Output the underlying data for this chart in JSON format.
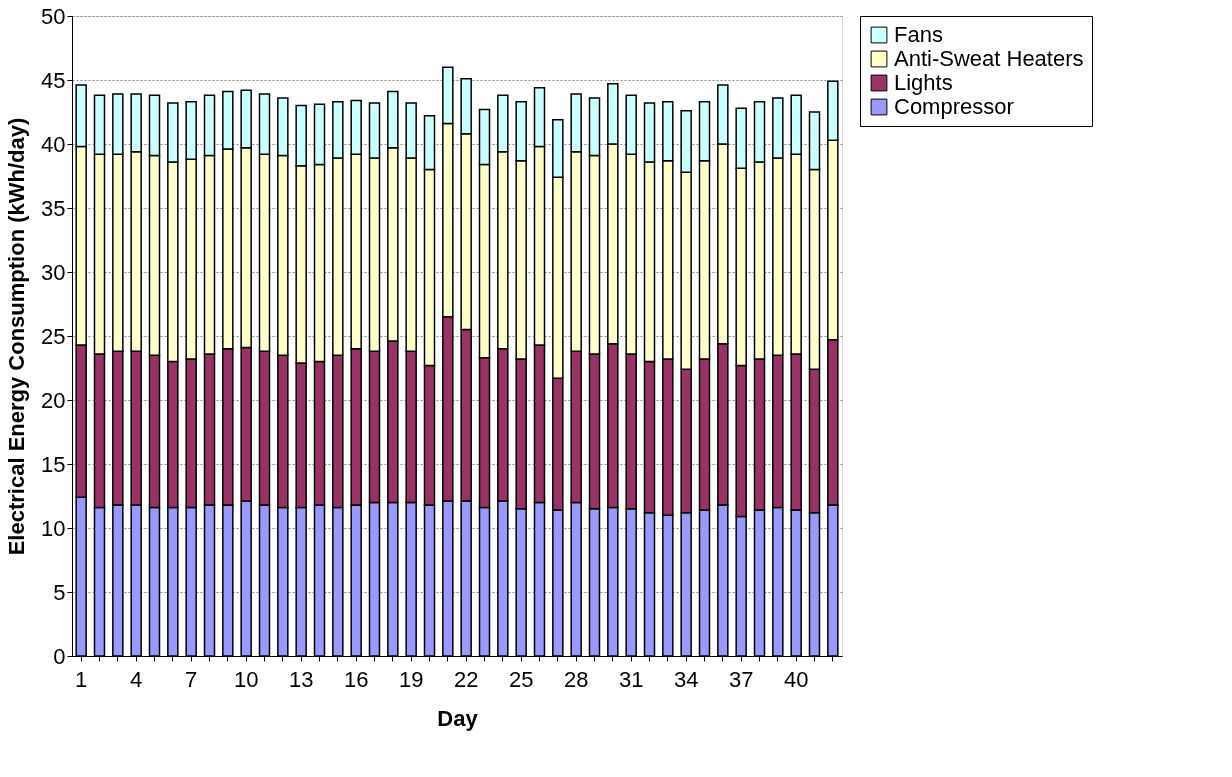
{
  "chart_data": {
    "type": "bar",
    "stacked": true,
    "xlabel": "Day",
    "ylabel": "Electrical Energy Consumption (kWh/day)",
    "categories": [
      "1",
      null,
      null,
      "4",
      null,
      null,
      "7",
      null,
      null,
      "10",
      null,
      null,
      "13",
      null,
      null,
      "16",
      null,
      null,
      "19",
      null,
      null,
      "22",
      null,
      null,
      "25",
      null,
      null,
      "28",
      null,
      null,
      "31",
      null,
      null,
      "34",
      null,
      null,
      "37",
      null,
      null,
      "40",
      null,
      null
    ],
    "series": [
      {
        "name": "Compressor",
        "color": "#9999ff",
        "values": [
          12.4,
          11.6,
          11.8,
          11.8,
          11.6,
          11.6,
          11.6,
          11.8,
          11.8,
          12.1,
          11.8,
          11.6,
          11.6,
          11.8,
          11.6,
          11.8,
          12.0,
          12.0,
          12.0,
          11.8,
          12.1,
          12.1,
          11.6,
          12.1,
          11.5,
          12.0,
          11.4,
          12.0,
          11.5,
          11.6,
          11.5,
          11.2,
          11.0,
          11.2,
          11.4,
          11.8,
          10.9,
          11.4,
          11.6,
          11.4,
          11.2,
          11.8
        ]
      },
      {
        "name": "Lights",
        "color": "#993366",
        "values": [
          11.9,
          12.0,
          12.0,
          12.0,
          11.9,
          11.4,
          11.6,
          11.8,
          12.2,
          12.0,
          12.0,
          11.9,
          11.3,
          11.2,
          11.9,
          12.2,
          11.8,
          12.6,
          11.8,
          10.9,
          14.4,
          13.4,
          11.7,
          11.9,
          11.7,
          12.3,
          10.3,
          11.8,
          12.1,
          12.8,
          12.1,
          11.8,
          12.2,
          11.2,
          11.8,
          12.6,
          11.8,
          11.8,
          11.9,
          12.2,
          11.2,
          12.9
        ]
      },
      {
        "name": "Anti-Sweat Heaters",
        "color": "#ffffcc",
        "values": [
          15.5,
          15.6,
          15.4,
          15.6,
          15.6,
          15.6,
          15.6,
          15.5,
          15.6,
          15.6,
          15.4,
          15.6,
          15.4,
          15.4,
          15.4,
          15.2,
          15.1,
          15.1,
          15.1,
          15.3,
          15.1,
          15.3,
          15.1,
          15.4,
          15.5,
          15.5,
          15.7,
          15.6,
          15.5,
          15.6,
          15.6,
          15.6,
          15.5,
          15.4,
          15.5,
          15.6,
          15.4,
          15.4,
          15.4,
          15.6,
          15.6,
          15.6
        ]
      },
      {
        "name": "Fans",
        "color": "#ccffff",
        "values": [
          4.8,
          4.6,
          4.7,
          4.5,
          4.7,
          4.6,
          4.5,
          4.7,
          4.5,
          4.5,
          4.7,
          4.5,
          4.7,
          4.7,
          4.4,
          4.2,
          4.3,
          4.4,
          4.3,
          4.2,
          4.4,
          4.3,
          4.3,
          4.4,
          4.6,
          4.6,
          4.5,
          4.5,
          4.5,
          4.7,
          4.6,
          4.6,
          4.6,
          4.8,
          4.6,
          4.6,
          4.7,
          4.7,
          4.7,
          4.6,
          4.5,
          4.6
        ]
      }
    ],
    "ylim": [
      0,
      50
    ],
    "yticks": [
      0,
      5,
      10,
      15,
      20,
      25,
      30,
      35,
      40,
      45,
      50
    ],
    "grid": "y",
    "legend": "right"
  }
}
